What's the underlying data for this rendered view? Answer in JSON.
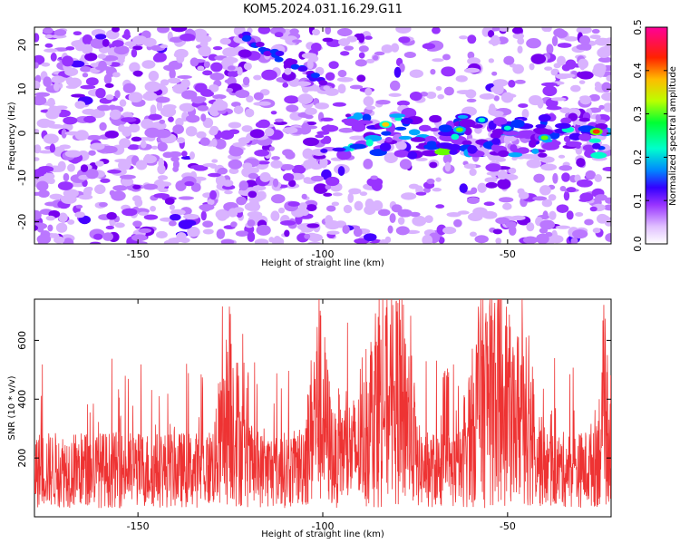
{
  "title": "KOM5.2024.031.16.29.G11",
  "chart_data": [
    {
      "type": "heatmap",
      "xlabel": "Height of straight line (km)",
      "ylabel": "Frequency (Hz)",
      "xlim": [
        -178,
        -22
      ],
      "ylim": [
        -25,
        24
      ],
      "x_ticks": [
        -150,
        -100,
        -50
      ],
      "y_ticks": [
        -20,
        -10,
        0,
        10,
        20
      ],
      "colorbar": {
        "label": "Normalized spectral amplitude",
        "range": [
          0.0,
          0.5
        ],
        "ticks": [
          0.0,
          0.1,
          0.2,
          0.3,
          0.4,
          0.5
        ],
        "colors": [
          "#ffffff",
          "#cc88ff",
          "#8800ff",
          "#0000ff",
          "#00ccff",
          "#00ff66",
          "#ccff00",
          "#ff9900",
          "#ff0000",
          "#ff0099"
        ]
      },
      "annotations": [
        {
          "desc": "diagonal streak",
          "x": [
            -122,
            -100
          ],
          "y": [
            22,
            12
          ]
        },
        {
          "desc": "bright horizontal band near 0 Hz",
          "x": [
            -100,
            -22
          ],
          "y": [
            -5,
            4
          ]
        }
      ]
    },
    {
      "type": "line",
      "xlabel": "Height of straight line (km)",
      "ylabel": "SNR (10 * v/v)",
      "xlim": [
        -178,
        -22
      ],
      "ylim": [
        0,
        740
      ],
      "x_ticks": [
        -150,
        -100,
        -50
      ],
      "y_ticks": [
        200,
        400,
        600
      ],
      "series_color": "#ee3333",
      "peaks": [
        {
          "x": -125,
          "y": 690
        },
        {
          "x": -101,
          "y": 740
        },
        {
          "x": -85,
          "y": 680
        },
        {
          "x": -79,
          "y": 670
        },
        {
          "x": -57,
          "y": 600
        },
        {
          "x": -52,
          "y": 740
        },
        {
          "x": -45,
          "y": 610
        },
        {
          "x": -23,
          "y": 550
        }
      ]
    }
  ]
}
